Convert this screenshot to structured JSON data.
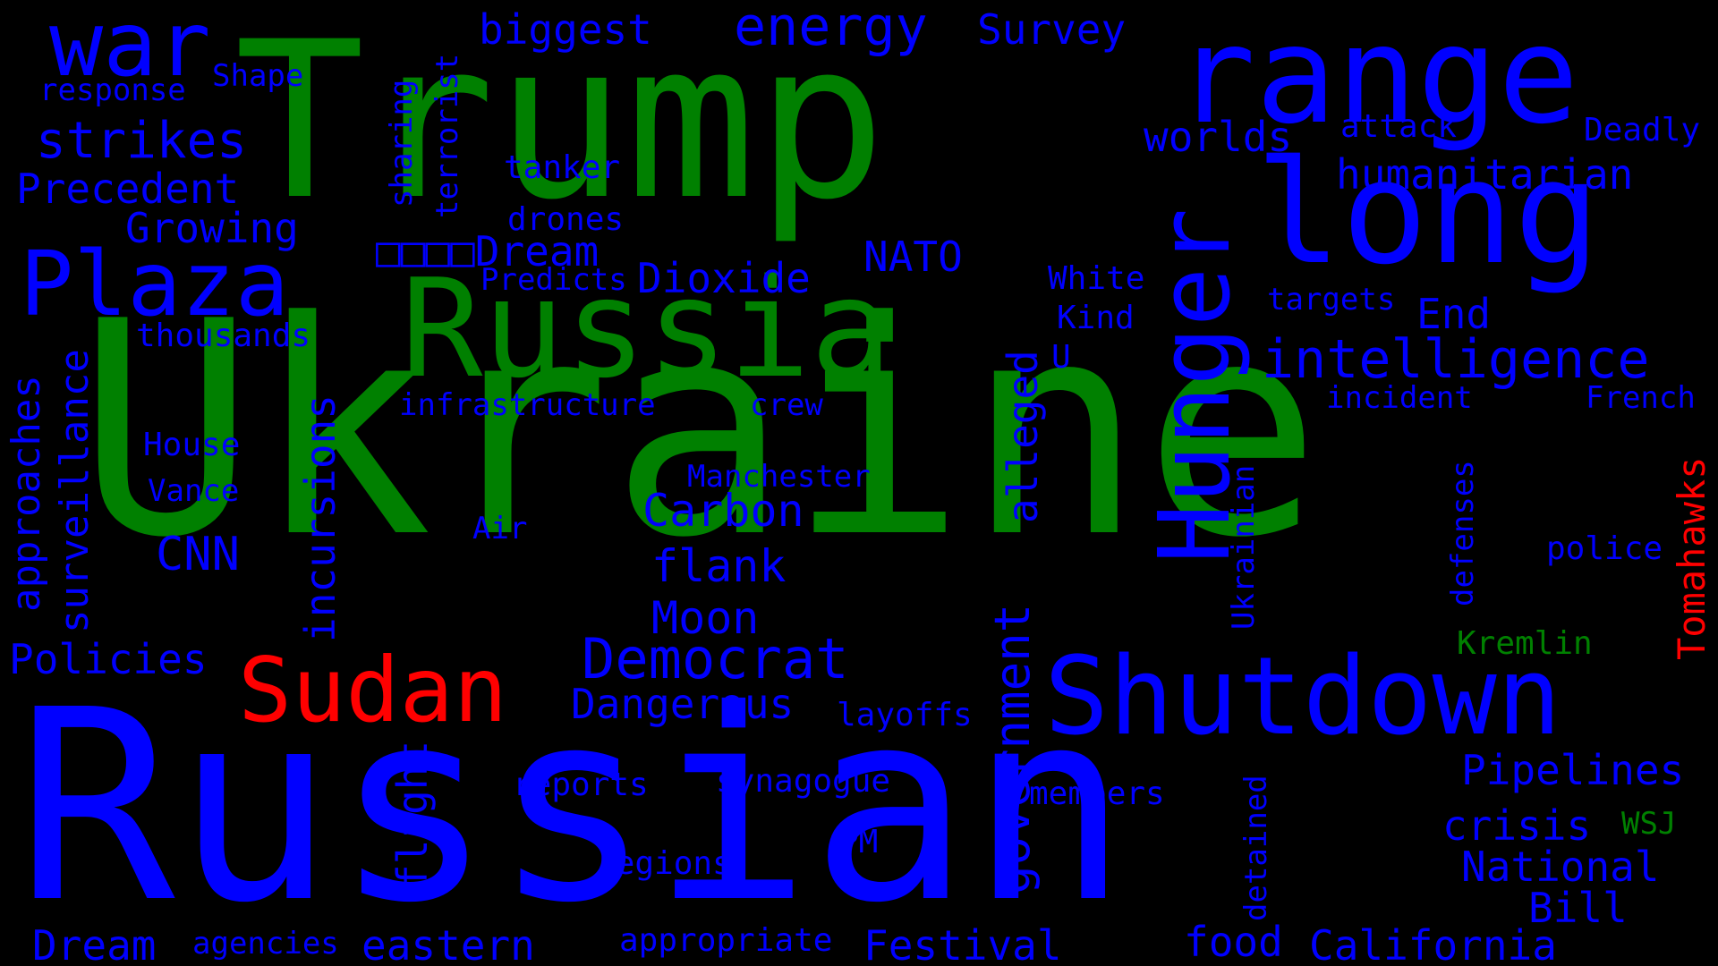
{
  "colors": {
    "background": "#000000",
    "green": "#008000",
    "blue": "#0000FF",
    "red": "#FF0000"
  },
  "words": [
    {
      "text": "Ukraine",
      "color": "green",
      "orientation": "horizontal"
    },
    {
      "text": "Russian",
      "color": "blue",
      "orientation": "horizontal"
    },
    {
      "text": "Trump",
      "color": "green",
      "orientation": "horizontal"
    },
    {
      "text": "Russia",
      "color": "green",
      "orientation": "horizontal"
    },
    {
      "text": "range",
      "color": "blue",
      "orientation": "horizontal"
    },
    {
      "text": "long",
      "color": "blue",
      "orientation": "horizontal"
    },
    {
      "text": "Shutdown",
      "color": "blue",
      "orientation": "horizontal"
    },
    {
      "text": "Sudan",
      "color": "red",
      "orientation": "horizontal"
    },
    {
      "text": "Plaza",
      "color": "blue",
      "orientation": "horizontal"
    },
    {
      "text": "Hunger",
      "color": "blue",
      "orientation": "vertical"
    },
    {
      "text": "war",
      "color": "blue",
      "orientation": "horizontal"
    },
    {
      "text": "intelligence",
      "color": "blue",
      "orientation": "horizontal"
    },
    {
      "text": "Democrat",
      "color": "blue",
      "orientation": "horizontal"
    },
    {
      "text": "government",
      "color": "blue",
      "orientation": "vertical"
    },
    {
      "text": "energy",
      "color": "blue",
      "orientation": "horizontal"
    },
    {
      "text": "strikes",
      "color": "blue",
      "orientation": "horizontal"
    },
    {
      "text": "humanitarian",
      "color": "blue",
      "orientation": "horizontal"
    },
    {
      "text": "Precedent",
      "color": "blue",
      "orientation": "horizontal"
    },
    {
      "text": "worlds",
      "color": "blue",
      "orientation": "horizontal"
    },
    {
      "text": "Survey",
      "color": "blue",
      "orientation": "horizontal"
    },
    {
      "text": "biggest",
      "color": "blue",
      "orientation": "horizontal"
    },
    {
      "text": "Growing",
      "color": "blue",
      "orientation": "horizontal"
    },
    {
      "text": "□□□□Dream",
      "color": "blue",
      "orientation": "horizontal"
    },
    {
      "text": "Dioxide",
      "color": "blue",
      "orientation": "horizontal"
    },
    {
      "text": "NATO",
      "color": "blue",
      "orientation": "horizontal"
    },
    {
      "text": "Carbon",
      "color": "blue",
      "orientation": "horizontal"
    },
    {
      "text": "flank",
      "color": "blue",
      "orientation": "horizontal"
    },
    {
      "text": "Moon",
      "color": "blue",
      "orientation": "horizontal"
    },
    {
      "text": "Dangerous",
      "color": "blue",
      "orientation": "horizontal"
    },
    {
      "text": "Policies",
      "color": "blue",
      "orientation": "horizontal"
    },
    {
      "text": "CNN",
      "color": "blue",
      "orientation": "horizontal"
    },
    {
      "text": "Pipelines",
      "color": "blue",
      "orientation": "horizontal"
    },
    {
      "text": "crisis",
      "color": "blue",
      "orientation": "horizontal"
    },
    {
      "text": "National",
      "color": "blue",
      "orientation": "horizontal"
    },
    {
      "text": "Bill",
      "color": "blue",
      "orientation": "horizontal"
    },
    {
      "text": "California",
      "color": "blue",
      "orientation": "horizontal"
    },
    {
      "text": "food",
      "color": "blue",
      "orientation": "horizontal"
    },
    {
      "text": "Festival",
      "color": "blue",
      "orientation": "horizontal"
    },
    {
      "text": "eastern",
      "color": "blue",
      "orientation": "horizontal"
    },
    {
      "text": "Dream",
      "color": "blue",
      "orientation": "horizontal"
    },
    {
      "text": "End",
      "color": "blue",
      "orientation": "horizontal"
    },
    {
      "text": "Deadly",
      "color": "blue",
      "orientation": "horizontal"
    },
    {
      "text": "attack",
      "color": "blue",
      "orientation": "horizontal"
    },
    {
      "text": "tanker",
      "color": "blue",
      "orientation": "horizontal"
    },
    {
      "text": "drones",
      "color": "blue",
      "orientation": "horizontal"
    },
    {
      "text": "Shape",
      "color": "blue",
      "orientation": "horizontal"
    },
    {
      "text": "response",
      "color": "blue",
      "orientation": "horizontal"
    },
    {
      "text": "Predicts",
      "color": "blue",
      "orientation": "horizontal"
    },
    {
      "text": "thousands",
      "color": "blue",
      "orientation": "horizontal"
    },
    {
      "text": "infrastructure",
      "color": "blue",
      "orientation": "horizontal"
    },
    {
      "text": "crew",
      "color": "blue",
      "orientation": "horizontal"
    },
    {
      "text": "White",
      "color": "blue",
      "orientation": "horizontal"
    },
    {
      "text": "Kind",
      "color": "blue",
      "orientation": "horizontal"
    },
    {
      "text": "U",
      "color": "blue",
      "orientation": "horizontal"
    },
    {
      "text": "targets",
      "color": "blue",
      "orientation": "horizontal"
    },
    {
      "text": "incident",
      "color": "blue",
      "orientation": "horizontal"
    },
    {
      "text": "French",
      "color": "blue",
      "orientation": "horizontal"
    },
    {
      "text": "House",
      "color": "blue",
      "orientation": "horizontal"
    },
    {
      "text": "Vance",
      "color": "blue",
      "orientation": "horizontal"
    },
    {
      "text": "Manchester",
      "color": "blue",
      "orientation": "horizontal"
    },
    {
      "text": "Air",
      "color": "blue",
      "orientation": "horizontal"
    },
    {
      "text": "police",
      "color": "blue",
      "orientation": "horizontal"
    },
    {
      "text": "Kremlin",
      "color": "green",
      "orientation": "horizontal"
    },
    {
      "text": "layoffs",
      "color": "blue",
      "orientation": "horizontal"
    },
    {
      "text": "reports",
      "color": "blue",
      "orientation": "horizontal"
    },
    {
      "text": "synagogue",
      "color": "blue",
      "orientation": "horizontal"
    },
    {
      "text": "members",
      "color": "blue",
      "orientation": "horizontal"
    },
    {
      "text": "PM",
      "color": "blue",
      "orientation": "horizontal"
    },
    {
      "text": "regions",
      "color": "blue",
      "orientation": "horizontal"
    },
    {
      "text": "WSJ",
      "color": "green",
      "orientation": "horizontal"
    },
    {
      "text": "agencies",
      "color": "blue",
      "orientation": "horizontal"
    },
    {
      "text": "appropriate",
      "color": "blue",
      "orientation": "horizontal"
    },
    {
      "text": "Tomahawks",
      "color": "red",
      "orientation": "vertical"
    },
    {
      "text": "alleged",
      "color": "blue",
      "orientation": "vertical"
    },
    {
      "text": "incursions",
      "color": "blue",
      "orientation": "vertical"
    },
    {
      "text": "surveillance",
      "color": "blue",
      "orientation": "vertical"
    },
    {
      "text": "approaches",
      "color": "blue",
      "orientation": "vertical"
    },
    {
      "text": "flight",
      "color": "blue",
      "orientation": "vertical"
    },
    {
      "text": "Ukrainian",
      "color": "blue",
      "orientation": "vertical"
    },
    {
      "text": "defenses",
      "color": "blue",
      "orientation": "vertical"
    },
    {
      "text": "detained",
      "color": "blue",
      "orientation": "vertical"
    },
    {
      "text": "terrorist",
      "color": "blue",
      "orientation": "vertical"
    },
    {
      "text": "sharing",
      "color": "blue",
      "orientation": "vertical"
    }
  ]
}
